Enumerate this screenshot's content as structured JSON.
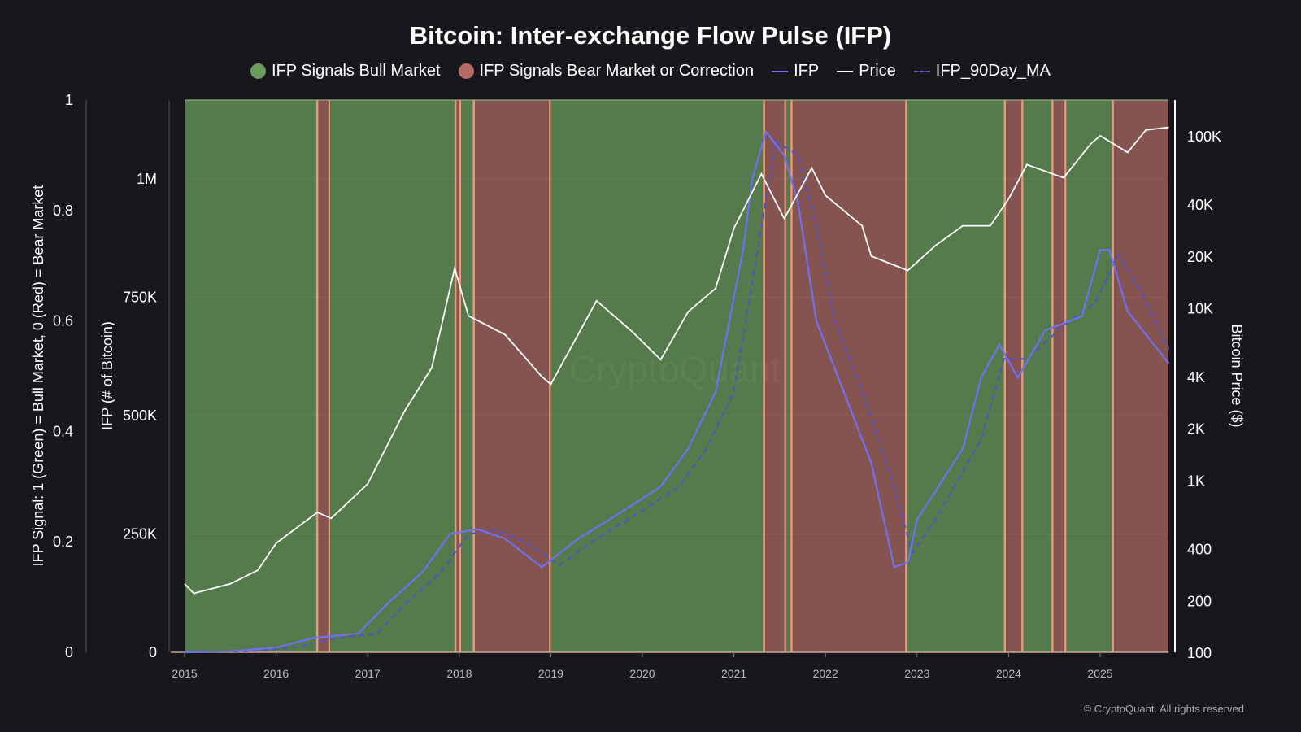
{
  "chart_data": {
    "type": "line",
    "title": "Bitcoin: Inter-exchange Flow Pulse (IFP)",
    "legend": [
      {
        "label": "IFP Signals Bull Market",
        "kind": "dot",
        "color": "#6a9c5e"
      },
      {
        "label": "IFP Signals Bear Market or Correction",
        "kind": "dot",
        "color": "#b56a66"
      },
      {
        "label": "IFP",
        "kind": "line",
        "color": "#7070f0"
      },
      {
        "label": "Price",
        "kind": "line",
        "color": "#ffffff"
      },
      {
        "label": "IFP_90Day_MA",
        "kind": "dash",
        "color": "#5050c8"
      }
    ],
    "legend_placement": "top-center",
    "colors": {
      "bull": "#557a4c",
      "bear": "#855350",
      "edge": "#e89a7a",
      "ifp": "#7070f0",
      "ma": "#5252c8",
      "price": "#ffffff"
    },
    "x_axis": {
      "ticks": [
        "2015",
        "2016",
        "2017",
        "2018",
        "2019",
        "2020",
        "2021",
        "2022",
        "2023",
        "2024",
        "2025"
      ],
      "range": [
        2015.0,
        2025.75
      ]
    },
    "y_signal": {
      "label": "IFP Signal: 1 (Green) = Bull Market, 0 (Red) = Bear Market",
      "ticks": [
        "0",
        "0.2",
        "0.4",
        "0.6",
        "0.8",
        "1"
      ],
      "range": [
        0,
        1
      ]
    },
    "y_ifp": {
      "label": "IFP (# of Bitcoin)",
      "ticks": [
        {
          "v": 0,
          "t": "0"
        },
        {
          "v": 250000,
          "t": "250K"
        },
        {
          "v": 500000,
          "t": "500K"
        },
        {
          "v": 750000,
          "t": "750K"
        },
        {
          "v": 1000000,
          "t": "1M"
        }
      ],
      "range": [
        0,
        1170000
      ]
    },
    "y_price": {
      "label": "Bitcoin Price ($)",
      "scale": "log",
      "ticks": [
        {
          "v": 100,
          "t": "100"
        },
        {
          "v": 200,
          "t": "200"
        },
        {
          "v": 400,
          "t": "400"
        },
        {
          "v": 1000,
          "t": "1K"
        },
        {
          "v": 2000,
          "t": "2K"
        },
        {
          "v": 4000,
          "t": "4K"
        },
        {
          "v": 10000,
          "t": "10K"
        },
        {
          "v": 20000,
          "t": "20K"
        },
        {
          "v": 40000,
          "t": "40K"
        },
        {
          "v": 100000,
          "t": "100K"
        }
      ],
      "range": [
        100,
        180000
      ]
    },
    "signal_periods": [
      {
        "start": 2015.0,
        "end": 2016.44,
        "signal": 1
      },
      {
        "start": 2016.44,
        "end": 2016.59,
        "signal": 0
      },
      {
        "start": 2016.59,
        "end": 2017.95,
        "signal": 1
      },
      {
        "start": 2017.95,
        "end": 2018.02,
        "signal": 0
      },
      {
        "start": 2018.02,
        "end": 2018.15,
        "signal": 1
      },
      {
        "start": 2018.15,
        "end": 2019.0,
        "signal": 0
      },
      {
        "start": 2019.0,
        "end": 2021.32,
        "signal": 1
      },
      {
        "start": 2021.32,
        "end": 2021.57,
        "signal": 0
      },
      {
        "start": 2021.57,
        "end": 2021.62,
        "signal": 1
      },
      {
        "start": 2021.62,
        "end": 2022.89,
        "signal": 0
      },
      {
        "start": 2022.89,
        "end": 2023.95,
        "signal": 1
      },
      {
        "start": 2023.95,
        "end": 2024.16,
        "signal": 0
      },
      {
        "start": 2024.16,
        "end": 2024.47,
        "signal": 1
      },
      {
        "start": 2024.47,
        "end": 2024.63,
        "signal": 0
      },
      {
        "start": 2024.63,
        "end": 2025.13,
        "signal": 1
      },
      {
        "start": 2025.13,
        "end": 2025.75,
        "signal": 0
      }
    ],
    "price": [
      [
        2015.0,
        250
      ],
      [
        2015.1,
        220
      ],
      [
        2015.5,
        250
      ],
      [
        2015.8,
        300
      ],
      [
        2016.0,
        430
      ],
      [
        2016.45,
        650
      ],
      [
        2016.6,
        600
      ],
      [
        2017.0,
        950
      ],
      [
        2017.4,
        2500
      ],
      [
        2017.7,
        4500
      ],
      [
        2017.95,
        17000
      ],
      [
        2018.1,
        9000
      ],
      [
        2018.5,
        7000
      ],
      [
        2018.9,
        4000
      ],
      [
        2019.0,
        3600
      ],
      [
        2019.5,
        11000
      ],
      [
        2019.9,
        7200
      ],
      [
        2020.2,
        5000
      ],
      [
        2020.5,
        9500
      ],
      [
        2020.8,
        13000
      ],
      [
        2021.0,
        29000
      ],
      [
        2021.3,
        60000
      ],
      [
        2021.55,
        33000
      ],
      [
        2021.85,
        65000
      ],
      [
        2022.0,
        45000
      ],
      [
        2022.4,
        30000
      ],
      [
        2022.5,
        20000
      ],
      [
        2022.9,
        16500
      ],
      [
        2023.2,
        23000
      ],
      [
        2023.5,
        30000
      ],
      [
        2023.8,
        30000
      ],
      [
        2024.0,
        43000
      ],
      [
        2024.2,
        68000
      ],
      [
        2024.6,
        57000
      ],
      [
        2024.9,
        90000
      ],
      [
        2025.0,
        100000
      ],
      [
        2025.3,
        80000
      ],
      [
        2025.5,
        108000
      ],
      [
        2025.75,
        112000
      ]
    ],
    "ifp": [
      [
        2015.0,
        0
      ],
      [
        2015.5,
        2000
      ],
      [
        2016.0,
        10000
      ],
      [
        2016.4,
        30000
      ],
      [
        2016.9,
        40000
      ],
      [
        2017.2,
        100000
      ],
      [
        2017.6,
        170000
      ],
      [
        2017.9,
        250000
      ],
      [
        2018.2,
        260000
      ],
      [
        2018.5,
        240000
      ],
      [
        2018.9,
        180000
      ],
      [
        2019.3,
        240000
      ],
      [
        2019.8,
        300000
      ],
      [
        2020.2,
        350000
      ],
      [
        2020.5,
        430000
      ],
      [
        2020.8,
        550000
      ],
      [
        2021.1,
        850000
      ],
      [
        2021.2,
        1000000
      ],
      [
        2021.35,
        1100000
      ],
      [
        2021.55,
        1050000
      ],
      [
        2021.7,
        950000
      ],
      [
        2021.9,
        700000
      ],
      [
        2022.2,
        550000
      ],
      [
        2022.5,
        400000
      ],
      [
        2022.75,
        180000
      ],
      [
        2022.9,
        190000
      ],
      [
        2023.0,
        280000
      ],
      [
        2023.5,
        430000
      ],
      [
        2023.7,
        580000
      ],
      [
        2023.9,
        650000
      ],
      [
        2024.1,
        580000
      ],
      [
        2024.4,
        680000
      ],
      [
        2024.8,
        710000
      ],
      [
        2025.0,
        850000
      ],
      [
        2025.1,
        850000
      ],
      [
        2025.3,
        720000
      ],
      [
        2025.75,
        610000
      ]
    ],
    "ifp_90day_ma": [
      [
        2015.0,
        0
      ],
      [
        2015.7,
        2000
      ],
      [
        2016.2,
        10000
      ],
      [
        2016.6,
        28000
      ],
      [
        2017.1,
        40000
      ],
      [
        2017.4,
        100000
      ],
      [
        2017.8,
        170000
      ],
      [
        2018.1,
        250000
      ],
      [
        2018.4,
        258000
      ],
      [
        2018.7,
        235000
      ],
      [
        2019.1,
        185000
      ],
      [
        2019.5,
        240000
      ],
      [
        2020.0,
        300000
      ],
      [
        2020.4,
        350000
      ],
      [
        2020.7,
        430000
      ],
      [
        2021.0,
        550000
      ],
      [
        2021.3,
        900000
      ],
      [
        2021.45,
        1080000
      ],
      [
        2021.7,
        1050000
      ],
      [
        2021.9,
        900000
      ],
      [
        2022.1,
        700000
      ],
      [
        2022.4,
        550000
      ],
      [
        2022.7,
        380000
      ],
      [
        2022.95,
        210000
      ],
      [
        2023.2,
        280000
      ],
      [
        2023.7,
        450000
      ],
      [
        2023.95,
        620000
      ],
      [
        2024.2,
        620000
      ],
      [
        2024.6,
        690000
      ],
      [
        2024.95,
        740000
      ],
      [
        2025.2,
        840000
      ],
      [
        2025.45,
        760000
      ],
      [
        2025.75,
        640000
      ]
    ]
  },
  "footer": {
    "copyright": "© CryptoQuant. All rights reserved"
  }
}
